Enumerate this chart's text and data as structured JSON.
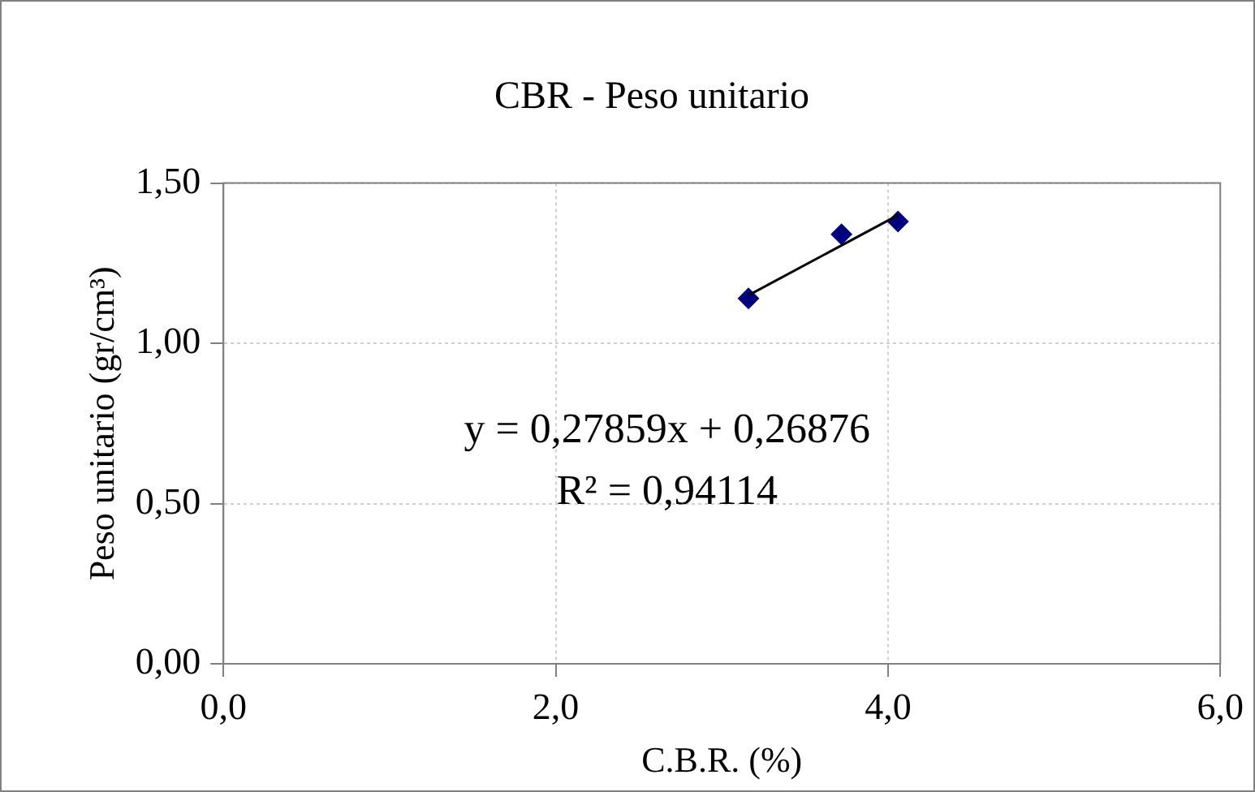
{
  "chart_data": {
    "type": "scatter",
    "title": "CBR - Peso unitario",
    "xlabel": "C.B.R. (%)",
    "ylabel": "Peso unitario (gr/cm³)",
    "xlim": [
      0,
      6
    ],
    "xticks": [
      {
        "value": 0,
        "label": "0,0"
      },
      {
        "value": 2,
        "label": "2,0"
      },
      {
        "value": 4,
        "label": "4,0"
      },
      {
        "value": 6,
        "label": "6,0"
      }
    ],
    "ylim": [
      0,
      1.5
    ],
    "yticks": [
      {
        "value": 0,
        "label": "0,00"
      },
      {
        "value": 0.5,
        "label": "0,50"
      },
      {
        "value": 1,
        "label": "1,00"
      },
      {
        "value": 1.5,
        "label": "1,50"
      }
    ],
    "grid": true,
    "legend": false,
    "marker": "diamond",
    "series": [
      {
        "color": "#000080",
        "x": [
          3.16,
          3.72,
          4.06
        ],
        "values": [
          1.14,
          1.34,
          1.38
        ]
      },
      {
        "type": "line",
        "marker": "none",
        "color": "#000000",
        "x": [
          3.16,
          4.06
        ],
        "values": [
          1.15,
          1.4
        ]
      }
    ],
    "annotations": [
      "y = 0,27859x + 0,26876",
      "R² = 0,94114"
    ]
  }
}
